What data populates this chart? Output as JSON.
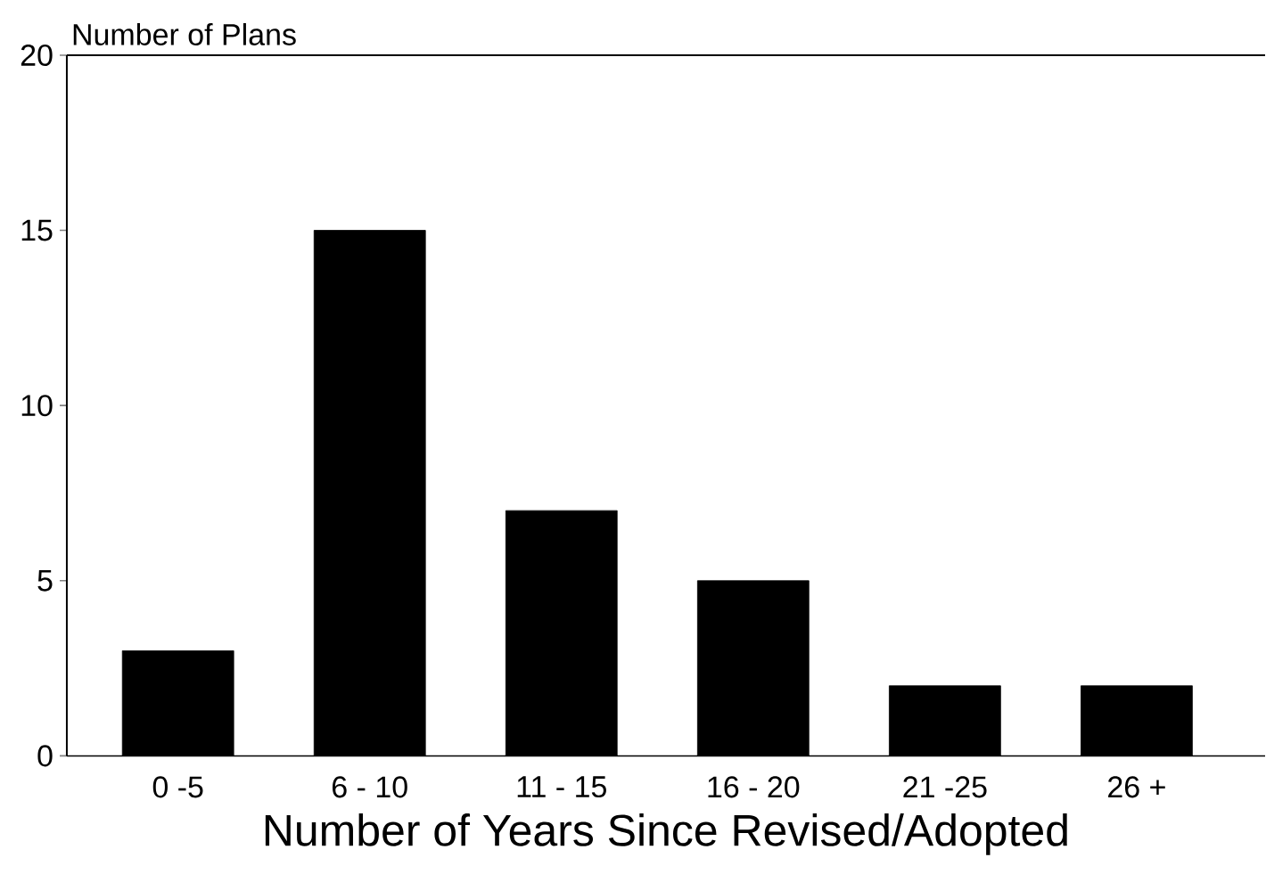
{
  "chart_data": {
    "type": "bar",
    "xlabel": "Number of Years Since Revised/Adopted",
    "ylabel": "Number of Plans",
    "categories": [
      "0 -5",
      "6 - 10",
      "11 - 15",
      "16 - 20",
      "21 -25",
      "26 +"
    ],
    "values": [
      3,
      15,
      7,
      5,
      2,
      2
    ],
    "color": "#000000",
    "ylim": [
      0,
      20
    ],
    "yticks": [
      0,
      5,
      10,
      15,
      20
    ],
    "grid": false
  }
}
